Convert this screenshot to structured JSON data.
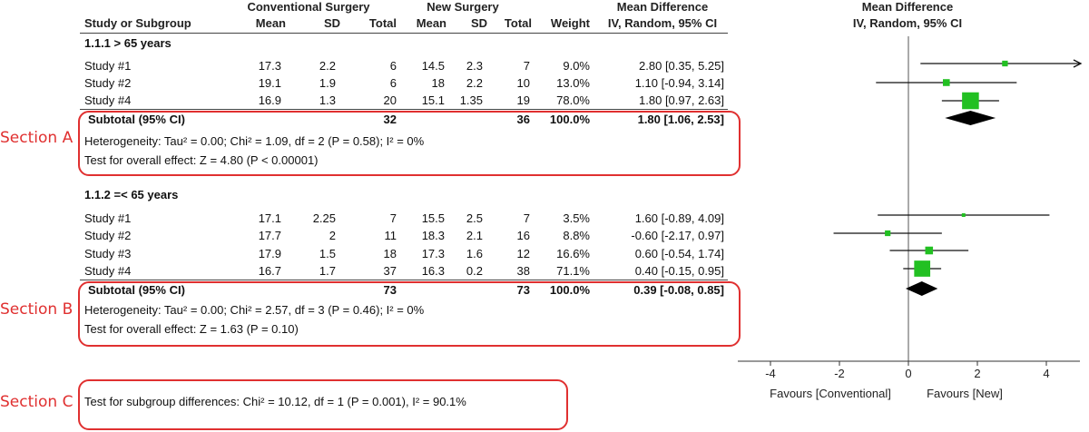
{
  "headers": {
    "study": "Study or Subgroup",
    "conv_group": "Conventional Surgery",
    "new_group": "New Surgery",
    "md_title": "Mean Difference",
    "md_sub": "IV, Random, 95% CI",
    "plot_title": "Mean Difference",
    "plot_sub": "IV, Random, 95% CI",
    "mean": "Mean",
    "sd": "SD",
    "total": "Total",
    "weight": "Weight"
  },
  "subgroups": [
    {
      "title": "1.1.1 > 65 years",
      "rows": [
        {
          "study": "Study #1",
          "cm": "17.3",
          "csd": "2.2",
          "ct": "6",
          "nm": "14.5",
          "nsd": "2.3",
          "nt": "7",
          "w": "9.0%",
          "ci": "2.80 [0.35, 5.25]"
        },
        {
          "study": "Study #2",
          "cm": "19.1",
          "csd": "1.9",
          "ct": "6",
          "nm": "18",
          "nsd": "2.2",
          "nt": "10",
          "w": "13.0%",
          "ci": "1.10 [-0.94, 3.14]"
        },
        {
          "study": "Study #4",
          "cm": "16.9",
          "csd": "1.3",
          "ct": "20",
          "nm": "15.1",
          "nsd": "1.35",
          "nt": "19",
          "w": "78.0%",
          "ci": "1.80 [0.97, 2.63]"
        }
      ],
      "subtotal": {
        "label": "Subtotal (95% CI)",
        "ct": "32",
        "nt": "36",
        "w": "100.0%",
        "ci": "1.80 [1.06, 2.53]"
      },
      "heterogeneity": "Heterogeneity: Tau² = 0.00; Chi² = 1.09, df = 2 (P = 0.58); I² = 0%",
      "overall": "Test for overall effect: Z = 4.80 (P < 0.00001)"
    },
    {
      "title": "1.1.2 =< 65 years",
      "rows": [
        {
          "study": "Study #1",
          "cm": "17.1",
          "csd": "2.25",
          "ct": "7",
          "nm": "15.5",
          "nsd": "2.5",
          "nt": "7",
          "w": "3.5%",
          "ci": "1.60 [-0.89, 4.09]"
        },
        {
          "study": "Study #2",
          "cm": "17.7",
          "csd": "2",
          "ct": "11",
          "nm": "18.3",
          "nsd": "2.1",
          "nt": "16",
          "w": "8.8%",
          "ci": "-0.60 [-2.17, 0.97]"
        },
        {
          "study": "Study #3",
          "cm": "17.9",
          "csd": "1.5",
          "ct": "18",
          "nm": "17.3",
          "nsd": "1.6",
          "nt": "12",
          "w": "16.6%",
          "ci": "0.60 [-0.54, 1.74]"
        },
        {
          "study": "Study #4",
          "cm": "16.7",
          "csd": "1.7",
          "ct": "37",
          "nm": "16.3",
          "nsd": "0.2",
          "nt": "38",
          "w": "71.1%",
          "ci": "0.40 [-0.15, 0.95]"
        }
      ],
      "subtotal": {
        "label": "Subtotal (95% CI)",
        "ct": "73",
        "nt": "73",
        "w": "100.0%",
        "ci": "0.39 [-0.08, 0.85]"
      },
      "heterogeneity": "Heterogeneity: Tau² = 0.00; Chi² = 2.57, df = 3 (P = 0.46); I² = 0%",
      "overall": "Test for overall effect: Z = 1.63 (P = 0.10)"
    }
  ],
  "subgroup_test": "Test for subgroup differences: Chi² = 10.12, df = 1 (P = 0.001), I² = 90.1%",
  "sections": {
    "a": "Section A",
    "b": "Section B",
    "c": "Section C"
  },
  "axis": {
    "favours_left": "Favours [Conventional]",
    "favours_right": "Favours [New]"
  },
  "colors": {
    "marker": "#22c022",
    "diamond": "#000000",
    "annotation": "#e03030"
  },
  "chart_data": {
    "type": "forest",
    "xlim": [
      -5,
      5
    ],
    "ticks": [
      -4,
      -2,
      0,
      2,
      4
    ],
    "null_line": 0,
    "studies": [
      {
        "group": "1.1.1 > 65 years",
        "study": "Study #1",
        "md": 2.8,
        "lo": 0.35,
        "hi": 5.25,
        "weight": 9.0
      },
      {
        "group": "1.1.1 > 65 years",
        "study": "Study #2",
        "md": 1.1,
        "lo": -0.94,
        "hi": 3.14,
        "weight": 13.0
      },
      {
        "group": "1.1.1 > 65 years",
        "study": "Study #4",
        "md": 1.8,
        "lo": 0.97,
        "hi": 2.63,
        "weight": 78.0
      },
      {
        "group": "1.1.2 =< 65 years",
        "study": "Study #1",
        "md": 1.6,
        "lo": -0.89,
        "hi": 4.09,
        "weight": 3.5
      },
      {
        "group": "1.1.2 =< 65 years",
        "study": "Study #2",
        "md": -0.6,
        "lo": -2.17,
        "hi": 0.97,
        "weight": 8.8
      },
      {
        "group": "1.1.2 =< 65 years",
        "study": "Study #3",
        "md": 0.6,
        "lo": -0.54,
        "hi": 1.74,
        "weight": 16.6
      },
      {
        "group": "1.1.2 =< 65 years",
        "study": "Study #4",
        "md": 0.4,
        "lo": -0.15,
        "hi": 0.95,
        "weight": 71.1
      }
    ],
    "subtotals": [
      {
        "group": "1.1.1 > 65 years",
        "md": 1.8,
        "lo": 1.06,
        "hi": 2.53
      },
      {
        "group": "1.1.2 =< 65 years",
        "md": 0.39,
        "lo": -0.08,
        "hi": 0.85
      }
    ]
  }
}
